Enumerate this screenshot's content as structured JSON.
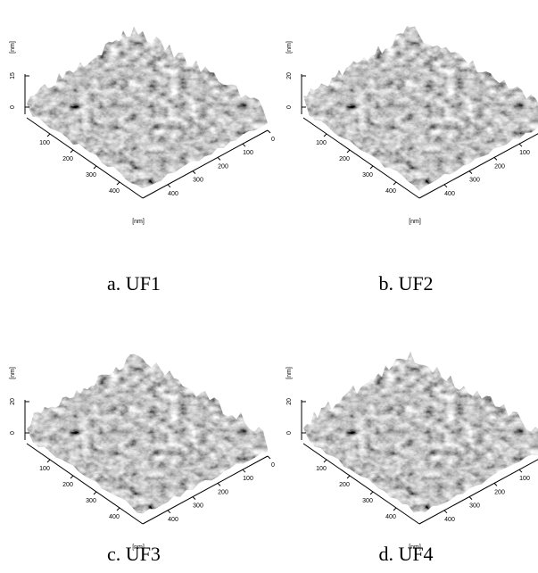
{
  "panels": [
    {
      "caption": "a. UF1",
      "z_unit": "[nm]",
      "z_ticks": [
        15,
        0
      ],
      "left_ticks": [
        100,
        200,
        300,
        400
      ],
      "right_ticks": [
        0,
        100,
        200,
        300,
        400
      ],
      "xy_unit": "[nm]"
    },
    {
      "caption": "b. UF2",
      "z_unit": "[nm]",
      "z_ticks": [
        20,
        0
      ],
      "left_ticks": [
        100,
        200,
        300,
        400
      ],
      "right_ticks": [
        0,
        100,
        200,
        300,
        400
      ],
      "xy_unit": "[nm]"
    },
    {
      "caption": "c. UF3",
      "z_unit": "[nm]",
      "z_ticks": [
        20,
        0
      ],
      "left_ticks": [
        100,
        200,
        300,
        400
      ],
      "right_ticks": [
        0,
        100,
        200,
        300,
        400
      ],
      "xy_unit": "[nm]"
    },
    {
      "caption": "d. UF4",
      "z_unit": "[nm]",
      "z_ticks": [
        20,
        0
      ],
      "left_ticks": [
        100,
        200,
        300,
        400
      ],
      "right_ticks": [
        0,
        100,
        200,
        300,
        400
      ],
      "xy_unit": "[nm]"
    }
  ]
}
